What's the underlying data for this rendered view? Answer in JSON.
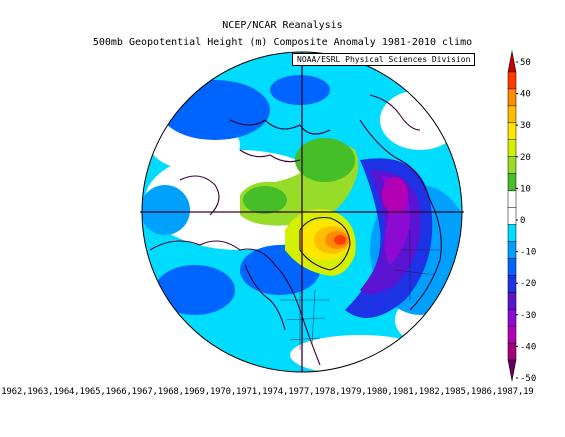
{
  "titles": {
    "line1": "NCEP/NCAR Reanalysis",
    "line2": "500mb Geopotential Height (m) Composite Anomaly 1981-2010 climo",
    "credit": "NOAA/ESRL Physical Sciences Division"
  },
  "colorbar": {
    "ticks": [
      "50",
      "40",
      "30",
      "20",
      "10",
      "0",
      "-10",
      "-20",
      "-30",
      "-40",
      "-50"
    ],
    "colors": [
      "#c80000",
      "#ff3c00",
      "#ff8c00",
      "#ffbe00",
      "#ffe600",
      "#d2f000",
      "#96dc28",
      "#46be28",
      "#ffffff",
      "#ffffff",
      "#00dcff",
      "#00a0ff",
      "#0064ff",
      "#1e32e6",
      "#5a14d2",
      "#8c0ad2",
      "#b400b4",
      "#a00078",
      "#640064"
    ]
  },
  "years_line": ",1962,1963,1964,1965,1966,1967,1968,1969,1970,1971,1974,1977,1978,1979,1980,1981,1982,1985,1986,1987,19"
}
